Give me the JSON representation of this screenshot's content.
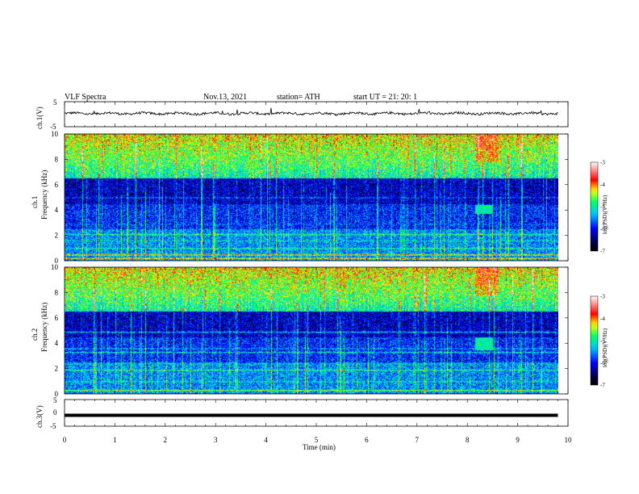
{
  "header": {
    "title": "VLF  Spectra",
    "date": "Nov.13, 2021",
    "station": "station= ATH",
    "start_ut": "start  UT  =   21: 20: 1"
  },
  "chart_data": [
    {
      "type": "line",
      "panel": "ch1-waveform",
      "ylabel": "ch.1(V)",
      "ylim": [
        -5,
        5
      ],
      "yticks": [
        "5",
        "-5"
      ],
      "xlim": [
        0,
        10
      ],
      "data_extent_min": [
        0,
        9.8
      ],
      "level_v": 0.3,
      "noise_amplitude_v": 0.6
    },
    {
      "type": "heatmap",
      "panel": "ch1-spectrogram",
      "ylabel": "ch.1\nFrequency  (kHz)",
      "ylim": [
        0,
        10
      ],
      "yticks": [
        "10",
        "8",
        "6",
        "4",
        "2",
        "0"
      ],
      "xlim": [
        0,
        10
      ],
      "data_extent_min": [
        0,
        9.8
      ],
      "colorbar": {
        "label": "log(PSD)(V²/Hz)",
        "range": [
          -7,
          -3
        ],
        "ticks": [
          "-3",
          "-4",
          "-5",
          "-6",
          "-7"
        ],
        "colors": [
          "#ffffff",
          "#ff0000",
          "#ffff00",
          "#00ff00",
          "#00ffff",
          "#0000ff",
          "#000040",
          "#000000"
        ]
      },
      "bands_khz": [
        {
          "f": 0.2,
          "level": -4.0
        },
        {
          "f": 0.5,
          "level": -4.2
        },
        {
          "f": 1.0,
          "level": -5.0
        },
        {
          "f": 1.6,
          "level": -5.3
        },
        {
          "f": 2.1,
          "level": -5.0
        },
        {
          "f": 2.9,
          "level": -5.8
        },
        {
          "f": 3.4,
          "level": -6.0
        },
        {
          "f": 5.0,
          "level": -5.8
        },
        {
          "f": 6.8,
          "level": -5.8
        }
      ],
      "burst": {
        "t_start": 8.15,
        "t_end": 8.5,
        "f_low": 3.7,
        "f_high": 4.4
      }
    },
    {
      "type": "heatmap",
      "panel": "ch2-spectrogram",
      "ylabel": "ch.2\nFrequency  (kHz)",
      "ylim": [
        0,
        10
      ],
      "yticks": [
        "10",
        "8",
        "6",
        "4",
        "2",
        "0"
      ],
      "xlim": [
        0,
        10
      ],
      "data_extent_min": [
        0,
        9.8
      ],
      "colorbar": {
        "label": "log(PSD)(V²/Hz)",
        "range": [
          -7,
          -3
        ],
        "ticks": [
          "-3",
          "-4",
          "-5",
          "-6",
          "-7"
        ],
        "colors": [
          "#ffffff",
          "#ff0000",
          "#ffff00",
          "#00ff00",
          "#00ffff",
          "#0000ff",
          "#000040",
          "#000000"
        ]
      },
      "bands_khz": [
        {
          "f": 0.3,
          "level": -4.5
        },
        {
          "f": 1.0,
          "level": -5.2
        },
        {
          "f": 1.9,
          "level": -5.0
        },
        {
          "f": 2.4,
          "level": -5.4
        },
        {
          "f": 3.3,
          "level": -5.2
        },
        {
          "f": 3.6,
          "level": -5.5
        },
        {
          "f": 4.9,
          "level": -5.4
        },
        {
          "f": 6.8,
          "level": -5.8
        }
      ],
      "burst": {
        "t_start": 8.15,
        "t_end": 8.5,
        "f_low": 3.5,
        "f_high": 4.5
      }
    },
    {
      "type": "line",
      "panel": "ch3-waveform",
      "ylabel": "ch.3(V)",
      "ylim": [
        -5,
        5
      ],
      "yticks": [
        "5",
        "0",
        "-5"
      ],
      "xlim": [
        0,
        10
      ],
      "data_extent_min": [
        0,
        9.8
      ],
      "level_v": -0.9,
      "xlabel": "Time  (min)",
      "xticks": [
        "0",
        "1",
        "2",
        "3",
        "4",
        "5",
        "6",
        "7",
        "8",
        "9",
        "10"
      ]
    }
  ]
}
